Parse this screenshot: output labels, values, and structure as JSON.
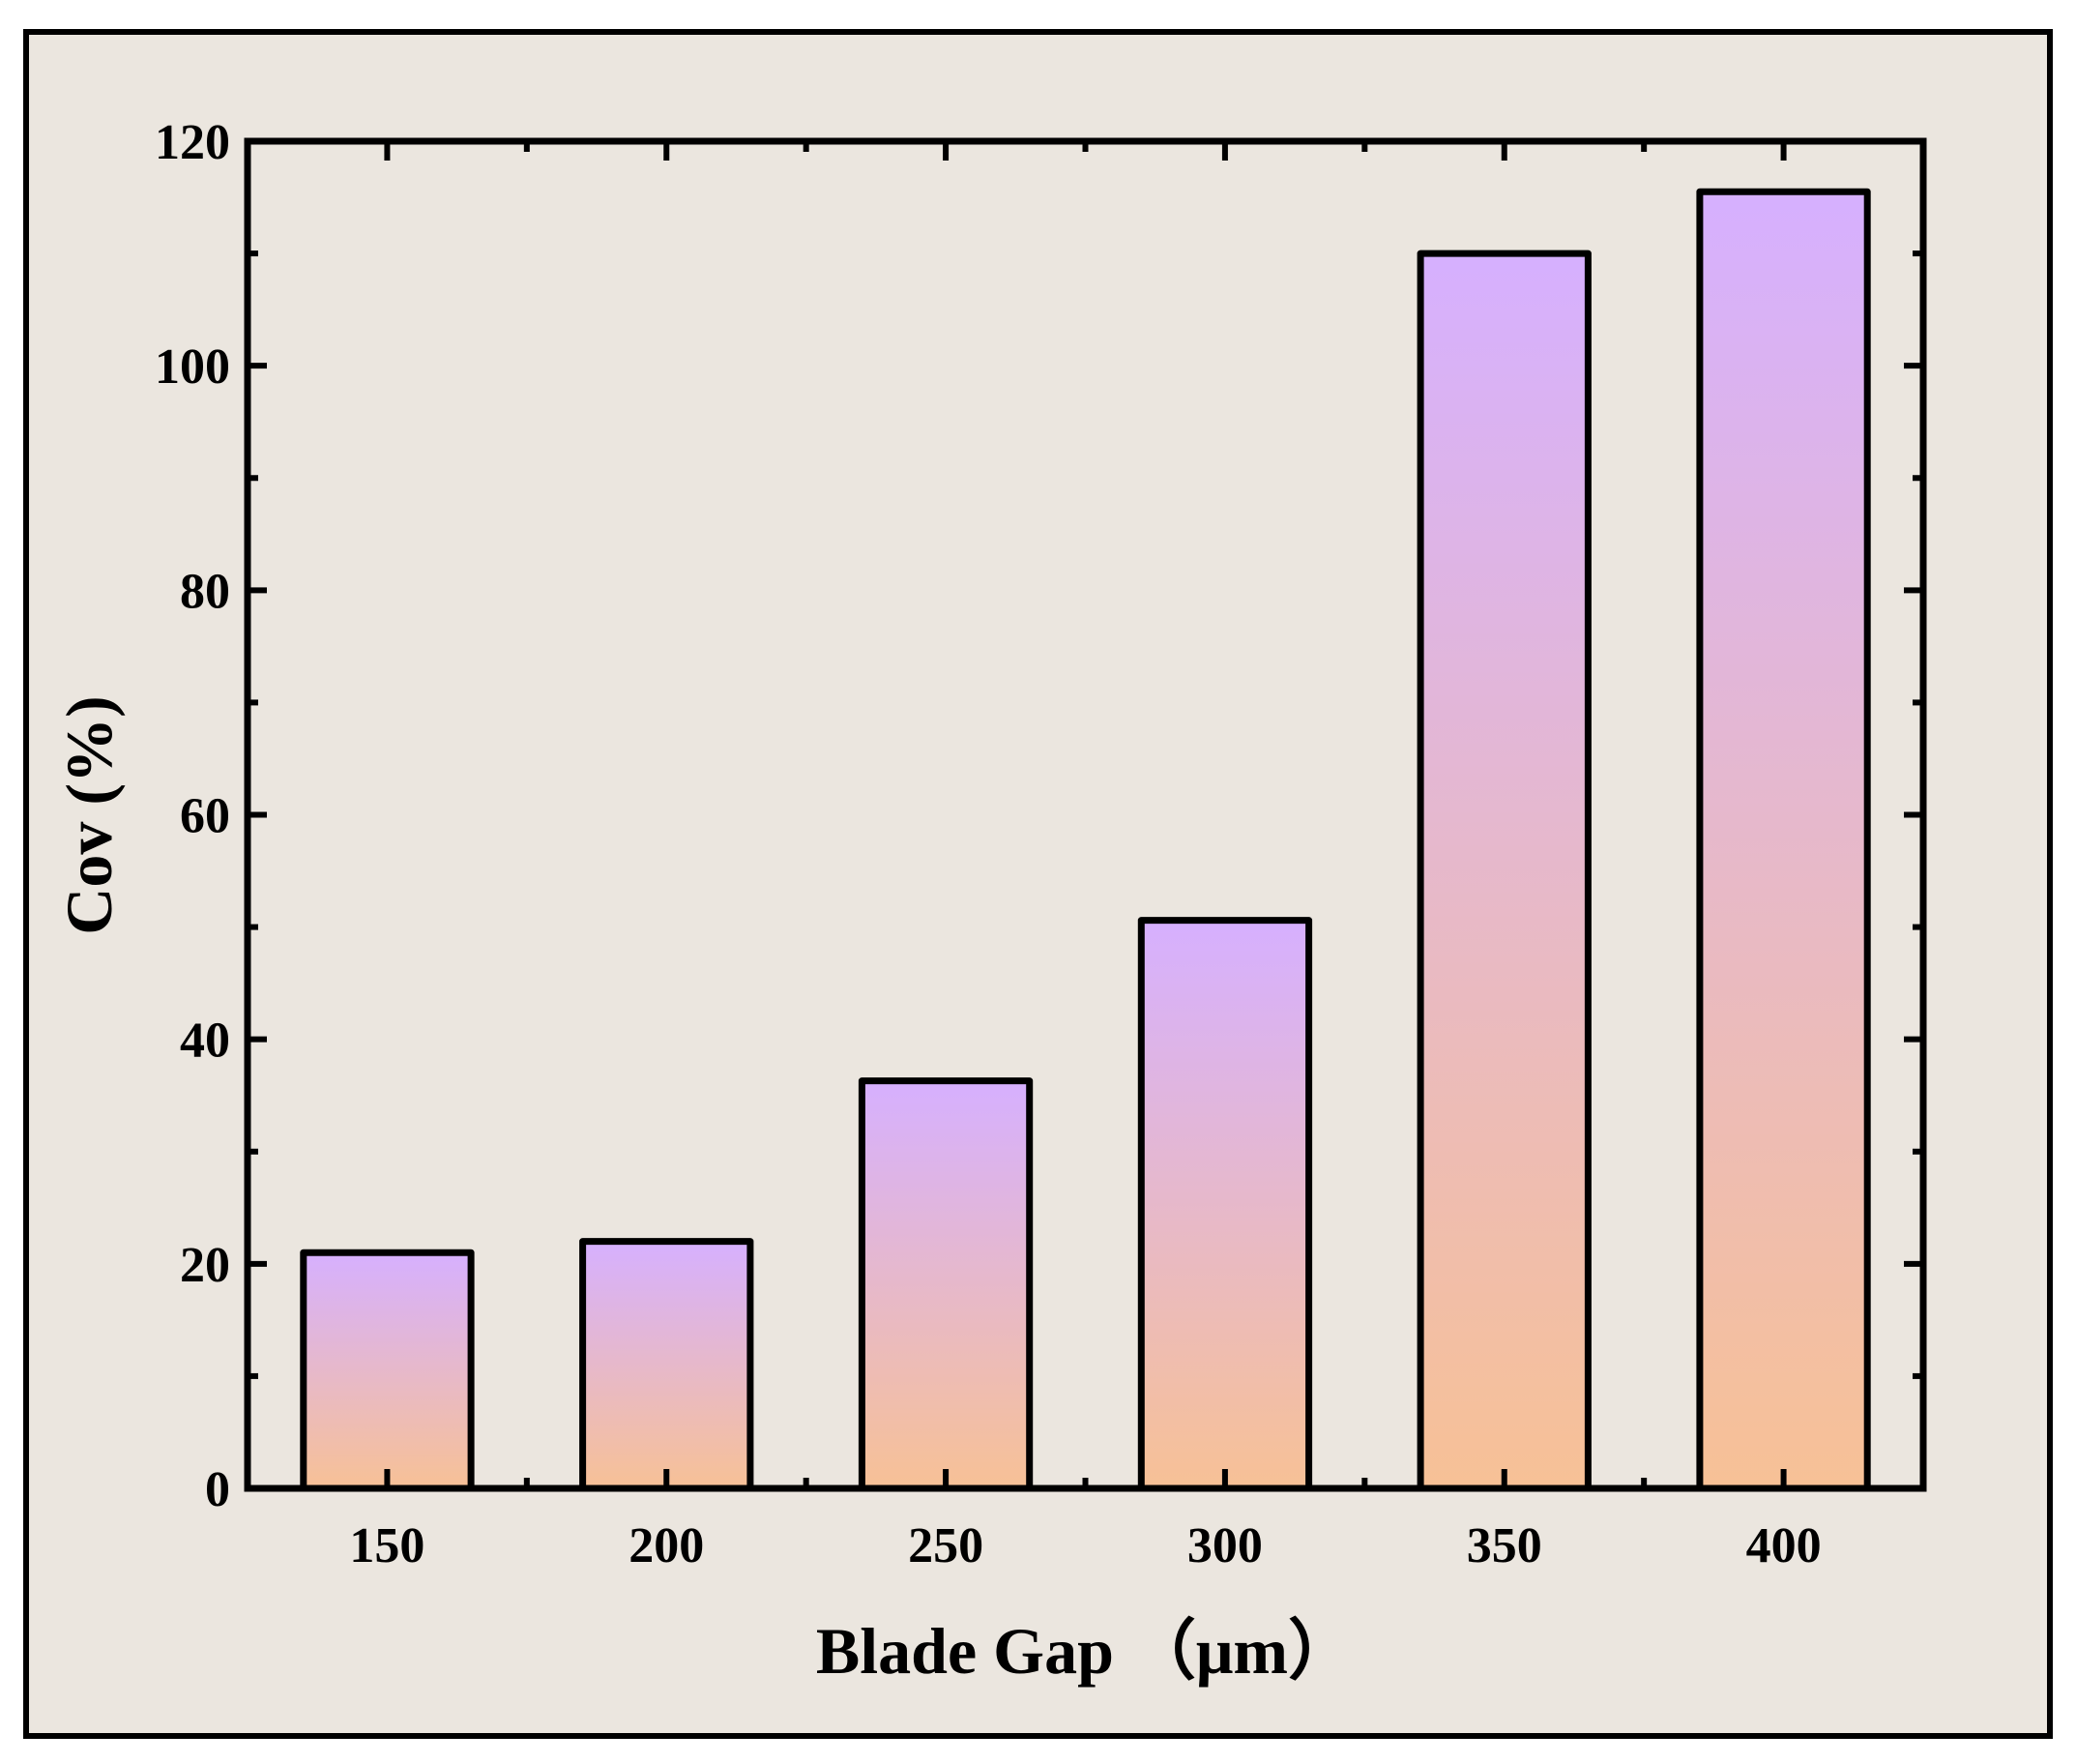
{
  "colors": {
    "panel_background": "#ebe6df",
    "bar_top": "#d6b0ff",
    "bar_bottom": "#f7c196",
    "outline": "#000000"
  },
  "chart_data": {
    "type": "bar",
    "categories": [
      "150",
      "200",
      "250",
      "300",
      "350",
      "400"
    ],
    "values": [
      21,
      22,
      36.3,
      50.6,
      110,
      115.5
    ],
    "xlabel": "Blade Gap （μm）",
    "ylabel": "Cov (%)",
    "ylim": [
      0,
      120
    ],
    "yticks": [
      "0",
      "20",
      "40",
      "60",
      "80",
      "100",
      "120"
    ],
    "grid": false,
    "legend": "none"
  }
}
